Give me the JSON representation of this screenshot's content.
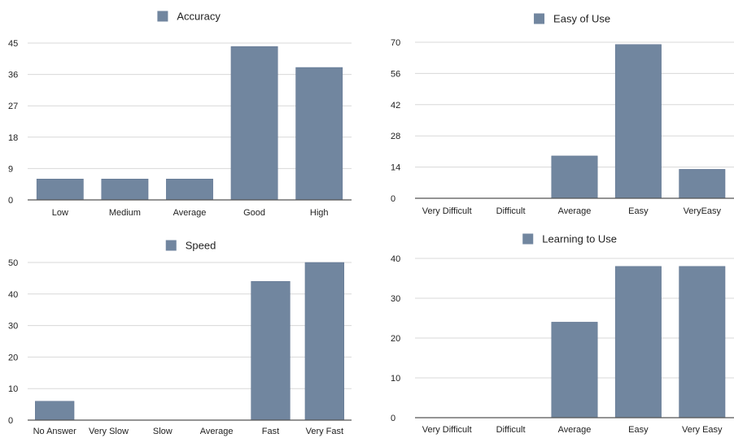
{
  "bar_color": "#71869f",
  "bar_edge_color": "#5f7390",
  "grid_color": "#d8d8d8",
  "axis_color": "#555555",
  "chart_data": [
    {
      "type": "bar",
      "title": "",
      "legend": "Accuracy",
      "legend_position": "top-center",
      "categories": [
        "Low",
        "Medium",
        "Average",
        "Good",
        "High"
      ],
      "values": [
        6,
        6,
        6,
        44,
        38
      ],
      "yticks": [
        0,
        9,
        18,
        27,
        36,
        45
      ],
      "ylim": [
        0,
        45
      ],
      "grid": true
    },
    {
      "type": "bar",
      "title": "",
      "legend": "Easy of Use",
      "legend_position": "top-center",
      "categories": [
        "Very Difficult",
        "Difficult",
        "Average",
        "Easy",
        "VeryEasy"
      ],
      "values": [
        0,
        0,
        19,
        69,
        13
      ],
      "yticks": [
        0,
        14,
        28,
        42,
        56,
        70
      ],
      "ylim": [
        0,
        70
      ],
      "grid": true
    },
    {
      "type": "bar",
      "title": "",
      "legend": "Speed",
      "legend_position": "top-center",
      "categories": [
        "No Answer",
        "Very Slow",
        "Slow",
        "Average",
        "Fast",
        "Very Fast"
      ],
      "values": [
        6,
        0,
        0,
        0,
        44,
        50
      ],
      "yticks": [
        0,
        10,
        20,
        30,
        40,
        50
      ],
      "ylim": [
        0,
        50
      ],
      "grid": true
    },
    {
      "type": "bar",
      "title": "",
      "legend": "Learning to Use",
      "legend_position": "top-center",
      "categories": [
        "Very Difficult",
        "Difficult",
        "Average",
        "Easy",
        "Very Easy"
      ],
      "values": [
        0,
        0,
        24,
        38,
        38
      ],
      "yticks": [
        0,
        10,
        20,
        30,
        40
      ],
      "ylim": [
        0,
        40
      ],
      "grid": true
    }
  ]
}
